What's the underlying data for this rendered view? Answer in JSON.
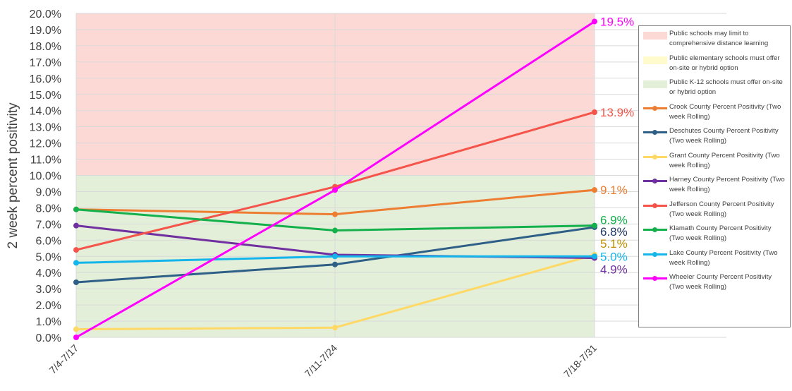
{
  "chart_data": {
    "type": "line",
    "title": "",
    "xlabel": "",
    "ylabel": "2 week percent positivity",
    "ylim": [
      0,
      20
    ],
    "yticks": [
      "0.0%",
      "1.0%",
      "2.0%",
      "3.0%",
      "4.0%",
      "5.0%",
      "6.0%",
      "7.0%",
      "8.0%",
      "9.0%",
      "10.0%",
      "11.0%",
      "12.0%",
      "13.0%",
      "14.0%",
      "15.0%",
      "16.0%",
      "17.0%",
      "18.0%",
      "19.0%",
      "20.0%"
    ],
    "categories": [
      "7/4-7/17",
      "7/11-7/24",
      "7/18-7/31"
    ],
    "bands": [
      {
        "name": "Public schools may limit to comprehensive distance learning",
        "from": 10,
        "to": 20,
        "color": "#fdd9d5"
      },
      {
        "name": "Public elementary schools must offer on-site or hybrid option",
        "from": 0,
        "to": 0,
        "color": "#fffbcc"
      },
      {
        "name": "Public K-12 schools must offer on-site or hybrid option",
        "from": 0,
        "to": 10,
        "color": "#e3efd9"
      }
    ],
    "series": [
      {
        "name": "Crook County Percent Positivity (Two week Rolling)",
        "values": [
          7.9,
          7.6,
          9.1
        ],
        "color": "#ed7d31",
        "end_label": "9.1%"
      },
      {
        "name": "Deschutes County Percent Positivity (Two week Rolling)",
        "values": [
          3.4,
          4.5,
          6.8
        ],
        "color": "#2e5f86",
        "end_label": "6.8%",
        "end_label_color": "#1f3864"
      },
      {
        "name": "Grant County Percent Positivity (Two week Rolling)",
        "values": [
          0.5,
          0.6,
          5.1
        ],
        "color": "#ffd966",
        "end_label": "5.1%",
        "end_label_color": "#bf9000"
      },
      {
        "name": "Harney County Percent Positivity (Two week Rolling)",
        "values": [
          6.9,
          5.1,
          4.9
        ],
        "color": "#7030a0",
        "end_label": "4.9%"
      },
      {
        "name": "Jefferson County Percent Positivity (Two week Rolling)",
        "values": [
          5.4,
          9.3,
          13.9
        ],
        "color": "#f4544a",
        "end_label": "13.9%"
      },
      {
        "name": "Klamath County Percent Positivity (Two week Rolling)",
        "values": [
          7.9,
          6.6,
          6.9
        ],
        "color": "#13b04b",
        "end_label": "6.9%"
      },
      {
        "name": "Lake County Percent Positivity (Two week Rolling)",
        "values": [
          4.6,
          5.0,
          5.0
        ],
        "color": "#13b5ea",
        "end_label": "5.0%"
      },
      {
        "name": "Wheeler County Percent Positivity (Two week Rolling)",
        "values": [
          0.0,
          9.1,
          19.5
        ],
        "color": "#ff00ff",
        "end_label": "19.5%"
      }
    ],
    "grid": true,
    "legend_position": "right"
  }
}
